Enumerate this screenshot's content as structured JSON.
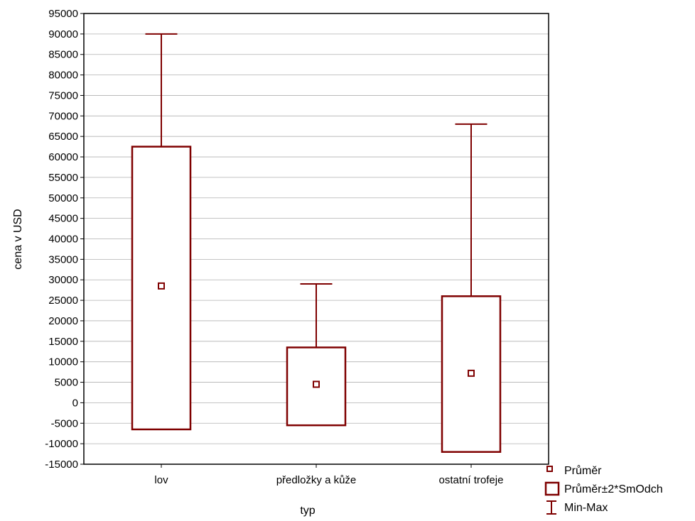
{
  "chart_data": {
    "type": "box",
    "xlabel": "typ",
    "ylabel": "cena v USD",
    "ylim": [
      -15000,
      95000
    ],
    "ytick_step": 5000,
    "grid": true,
    "legend_position": "bottom-right",
    "colors": {
      "series": "#7f0000",
      "axis": "#000000",
      "grid": "#b0b0b0"
    },
    "categories": [
      "lov",
      "předložky a kůže",
      "ostatní trofeje"
    ],
    "series": [
      {
        "category": "lov",
        "mean": 28500,
        "box_low": -6500,
        "box_high": 62500,
        "min": -6500,
        "max": 90000
      },
      {
        "category": "předložky a kůže",
        "mean": 4500,
        "box_low": -5500,
        "box_high": 13500,
        "min": -5500,
        "max": 29000
      },
      {
        "category": "ostatní trofeje",
        "mean": 7200,
        "box_low": -12000,
        "box_high": 26000,
        "min": -12000,
        "max": 68000
      }
    ],
    "legend": [
      {
        "label": "Průměr",
        "symbol": "mean-marker"
      },
      {
        "label": "Průměr±2*SmOdch",
        "symbol": "box"
      },
      {
        "label": "Min-Max",
        "symbol": "whisker"
      }
    ]
  }
}
